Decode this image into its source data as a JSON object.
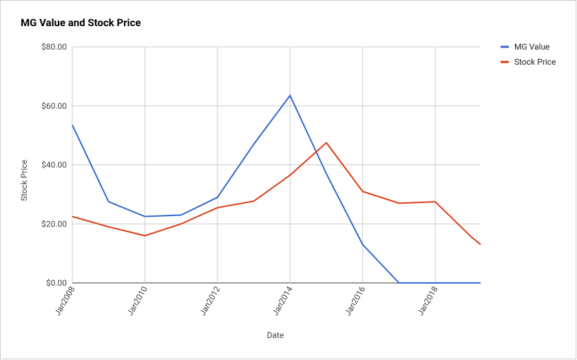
{
  "chart_data": {
    "type": "line",
    "title": "MG Value and Stock Price",
    "x_label": "Date",
    "y_label": "Stock Price",
    "x": [
      "2008-01",
      "2009-01",
      "2010-01",
      "2011-01",
      "2012-01",
      "2013-01",
      "2014-01",
      "2015-01",
      "2016-01",
      "2017-01",
      "2018-01",
      "2019-01",
      "2019-04"
    ],
    "series": [
      {
        "name": "MG Value",
        "color": "#3366cc",
        "values": [
          53.5,
          27.5,
          22.5,
          23,
          29,
          47,
          63.5,
          37,
          13,
          0,
          0,
          0,
          0
        ]
      },
      {
        "name": "Stock Price",
        "color": "#dc3912",
        "values": [
          22.5,
          19,
          16,
          20,
          25.5,
          27.7,
          36.5,
          47.5,
          31,
          27,
          27.5,
          15.5,
          13
        ]
      }
    ],
    "xlim": [
      "2008-01",
      "2019-04"
    ],
    "xticks": [
      {
        "value": "2008-01",
        "label": "Jan2008"
      },
      {
        "value": "2010-01",
        "label": "Jan2010"
      },
      {
        "value": "2012-01",
        "label": "Jan2012"
      },
      {
        "value": "2014-01",
        "label": "Jan2014"
      },
      {
        "value": "2016-01",
        "label": "Jan2016"
      },
      {
        "value": "2018-01",
        "label": "Jan2018"
      }
    ],
    "ylim": [
      0,
      80
    ],
    "yticks": [
      {
        "value": 0,
        "label": "$0.00"
      },
      {
        "value": 20,
        "label": "$20.00"
      },
      {
        "value": 40,
        "label": "$40.00"
      },
      {
        "value": 60,
        "label": "$60.00"
      },
      {
        "value": 80,
        "label": "$80.00"
      }
    ],
    "grid": true,
    "legend": "right"
  }
}
